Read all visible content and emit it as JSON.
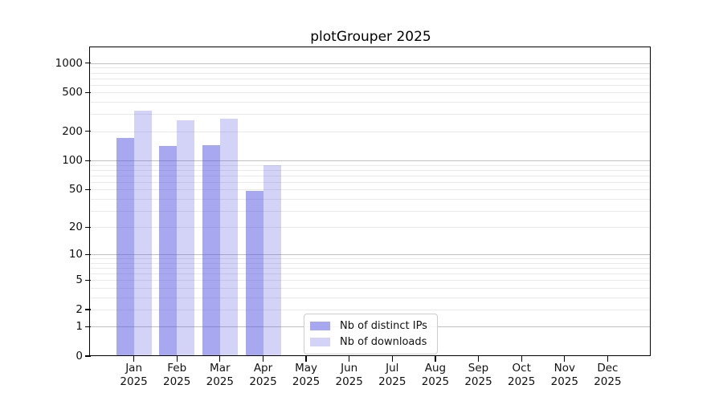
{
  "chart_data": {
    "type": "bar",
    "title": "plotGrouper 2025",
    "x_axis": {
      "categories": [
        "Jan",
        "Feb",
        "Mar",
        "Apr",
        "May",
        "Jun",
        "Jul",
        "Aug",
        "Sep",
        "Oct",
        "Nov",
        "Dec"
      ],
      "year_label": "2025"
    },
    "y_axis": {
      "scale": "log10(1+v)",
      "ticks": [
        0,
        1,
        2,
        5,
        10,
        20,
        50,
        100,
        200,
        500,
        1000
      ],
      "range_top_value": 1430,
      "grid_major_at": [
        1,
        10,
        100,
        1000
      ],
      "grid": "on"
    },
    "series": [
      {
        "name": "Nb of distinct IPs",
        "color": "rgba(81,81,227,0.5)",
        "values": [
          170,
          140,
          145,
          48,
          0,
          0,
          0,
          0,
          0,
          0,
          0,
          0
        ]
      },
      {
        "name": "Nb of downloads",
        "color": "rgba(81,81,227,0.25)",
        "values": [
          325,
          260,
          270,
          90,
          0,
          0,
          0,
          0,
          0,
          0,
          0,
          0
        ]
      }
    ],
    "legend": {
      "position": "lower-center"
    }
  },
  "colors": {
    "grid_major": "#c0c0c0",
    "grid_minor": "#e9e9e9",
    "spine": "#000000",
    "text": "#111111",
    "legend_border": "#cccccc"
  }
}
